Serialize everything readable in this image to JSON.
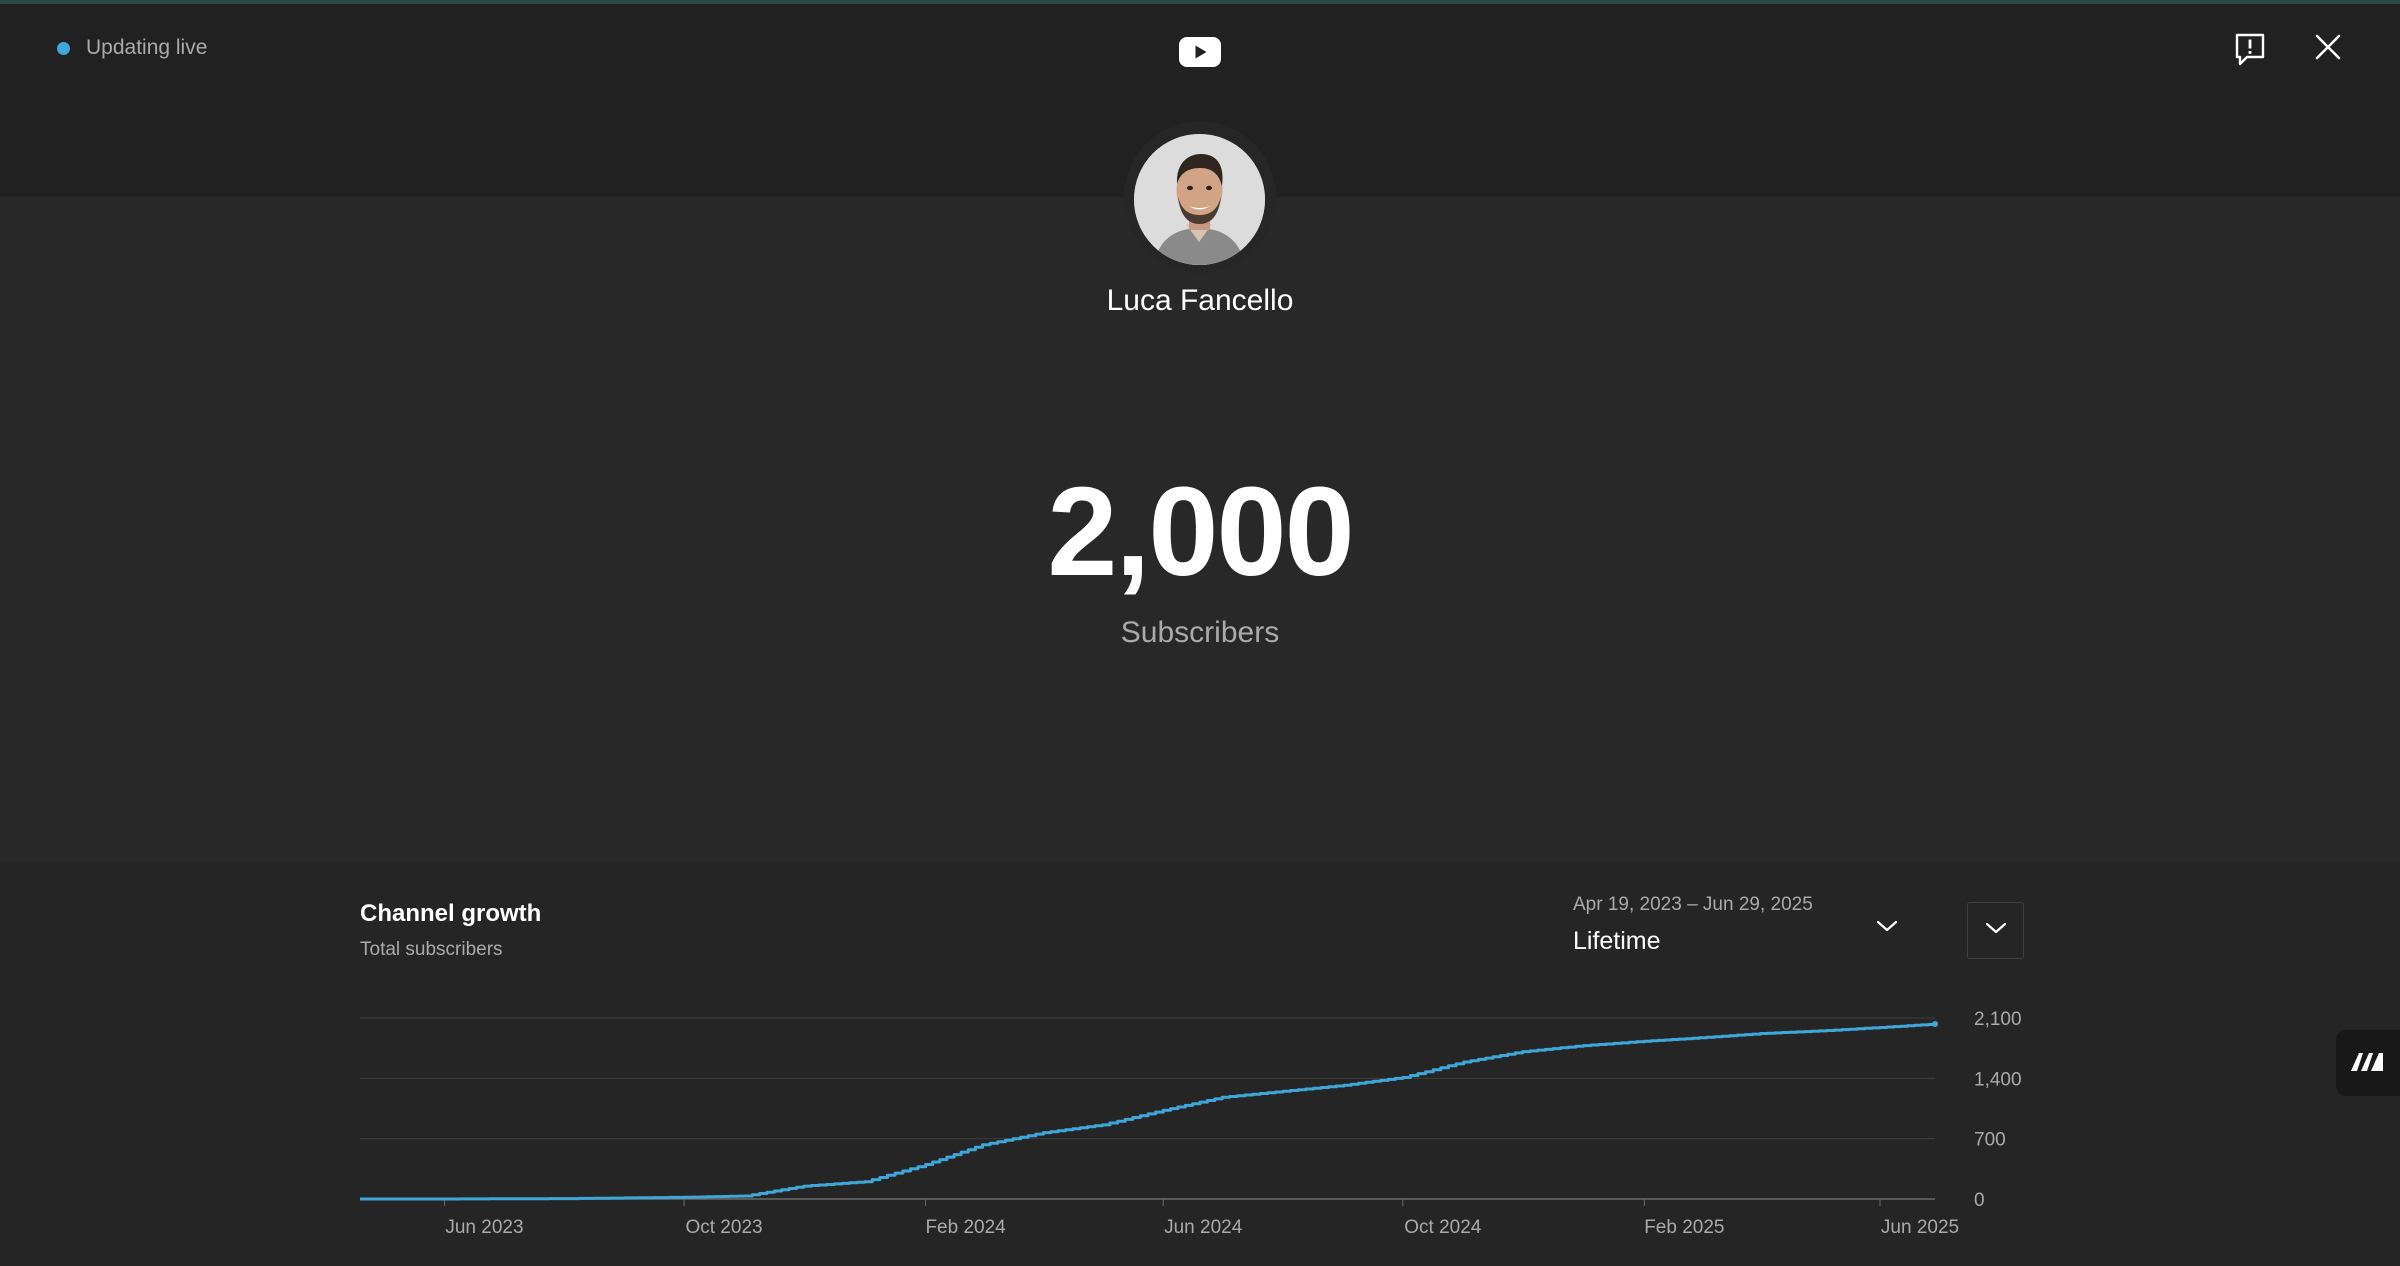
{
  "header": {
    "live_status": "Updating live",
    "logo_icon": "youtube-play-icon",
    "report_icon": "report-feedback-icon",
    "close_icon": "close-icon",
    "accent_color": "#3ea6d9"
  },
  "channel": {
    "name": "Luca Fancello",
    "avatar": "avatar-photo"
  },
  "stats": {
    "count": "2,000",
    "label": "Subscribers"
  },
  "chart_section": {
    "title": "Channel growth",
    "subtitle": "Total subscribers",
    "date_range": "Apr 19, 2023 – Jun 29, 2025",
    "period": "Lifetime",
    "period_icon": "chevron-down-icon",
    "expand_icon": "chevron-down-icon",
    "side_tab_icon": "brand-logo-icon"
  },
  "chart_data": {
    "type": "line",
    "title": "Channel growth",
    "subtitle": "Total subscribers",
    "xlabel": "",
    "ylabel": "",
    "y_ticks": [
      {
        "label": "2,100",
        "value": 2100
      },
      {
        "label": "1,400",
        "value": 1400
      },
      {
        "label": "700",
        "value": 700
      },
      {
        "label": "0",
        "value": 0
      }
    ],
    "x_ticks": [
      {
        "label": "Jun 2023",
        "date": "2023-06-01"
      },
      {
        "label": "Oct 2023",
        "date": "2023-10-01"
      },
      {
        "label": "Feb 2024",
        "date": "2024-02-01"
      },
      {
        "label": "Jun 2024",
        "date": "2024-06-01"
      },
      {
        "label": "Oct 2024",
        "date": "2024-10-01"
      },
      {
        "label": "Feb 2025",
        "date": "2025-02-01"
      },
      {
        "label": "Jun 2025",
        "date": "2025-06-01"
      }
    ],
    "x_range": [
      "2023-04-19",
      "2025-06-29"
    ],
    "ylim": [
      0,
      2100
    ],
    "grid": true,
    "color": "#3ea6d9",
    "series": [
      {
        "x": [
          "2023-04-19",
          "2023-06-01",
          "2023-08-01",
          "2023-10-01",
          "2023-11-01",
          "2023-12-01",
          "2024-01-01",
          "2024-02-01",
          "2024-03-01",
          "2024-04-01",
          "2024-05-01",
          "2024-06-01",
          "2024-07-01",
          "2024-08-01",
          "2024-09-01",
          "2024-10-01",
          "2024-11-01",
          "2024-12-01",
          "2025-01-01",
          "2025-02-01",
          "2025-03-01",
          "2025-04-01",
          "2025-05-01",
          "2025-06-01",
          "2025-06-29"
        ],
        "y": [
          0,
          0,
          5,
          20,
          35,
          150,
          200,
          400,
          630,
          770,
          860,
          1030,
          1180,
          1250,
          1320,
          1410,
          1590,
          1710,
          1780,
          1830,
          1870,
          1920,
          1950,
          1990,
          2030
        ]
      }
    ]
  }
}
